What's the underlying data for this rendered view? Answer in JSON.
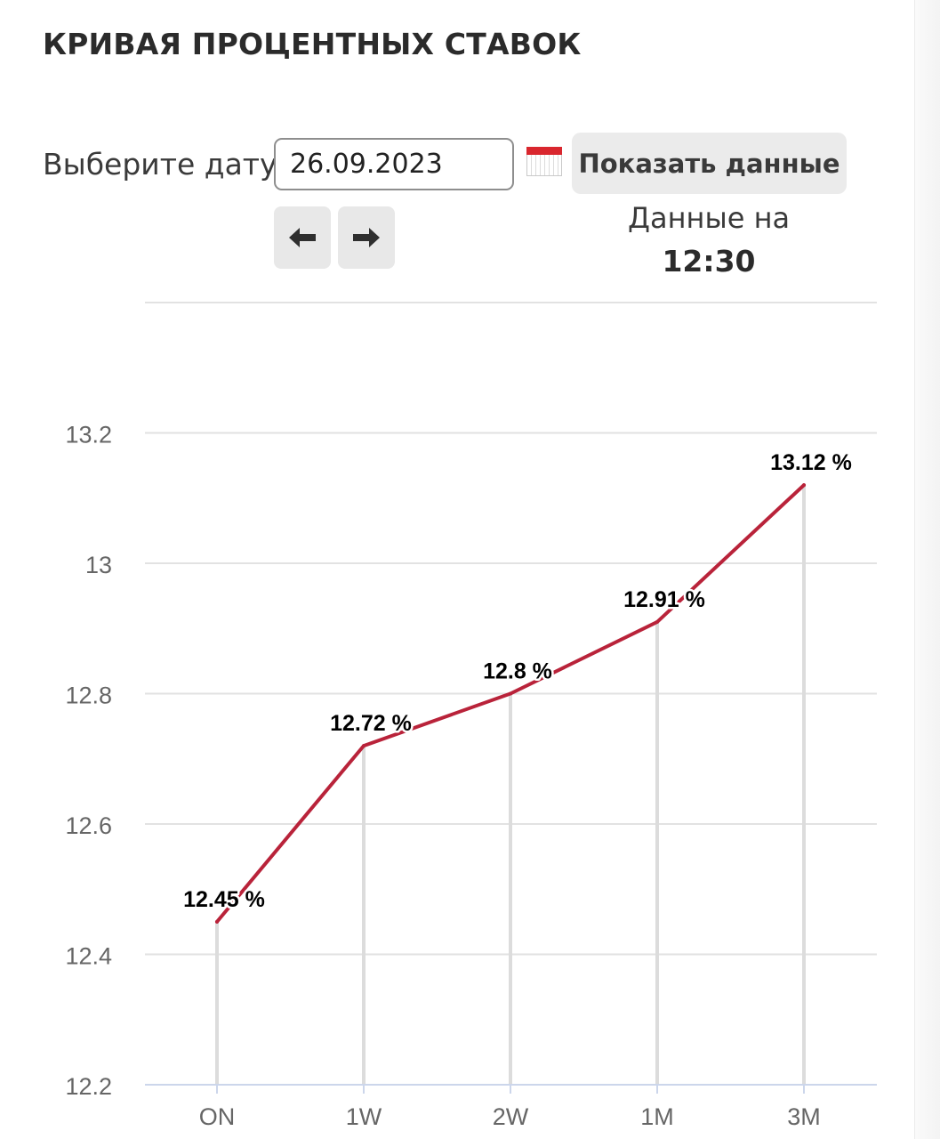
{
  "header": {
    "title": "КРИВАЯ ПРОЦЕНТНЫХ СТАВОК"
  },
  "controls": {
    "date_label": "Выберите дату:",
    "date_value": "26.09.2023",
    "show_button_label": "Показать данные",
    "prev_icon": "arrow-left-icon",
    "next_icon": "arrow-right-icon",
    "calendar_icon": "calendar-icon"
  },
  "data_time": {
    "label": "Данные на",
    "value": "12:30"
  },
  "colors": {
    "line": "#b9233a",
    "grid": "#e2e2e2",
    "drop_line": "#dcdcdc",
    "axis": "#ccd6eb",
    "tick_label": "#666666",
    "data_label": "#000000"
  },
  "chart_data": {
    "type": "line",
    "categories": [
      "ON",
      "1W",
      "2W",
      "1M",
      "3M"
    ],
    "series": [
      {
        "values": [
          12.45,
          12.72,
          12.8,
          12.91,
          13.12
        ]
      }
    ],
    "data_labels": [
      "12.45 %",
      "12.72 %",
      "12.8 %",
      "12.91 %",
      "13.12 %"
    ],
    "y_ticks": [
      "12.2",
      "12.4",
      "12.6",
      "12.8",
      "13",
      "13.2"
    ],
    "ylim": [
      12.2,
      13.4
    ],
    "grid": true,
    "legend": "none",
    "title": "",
    "xlabel": "",
    "ylabel": ""
  }
}
